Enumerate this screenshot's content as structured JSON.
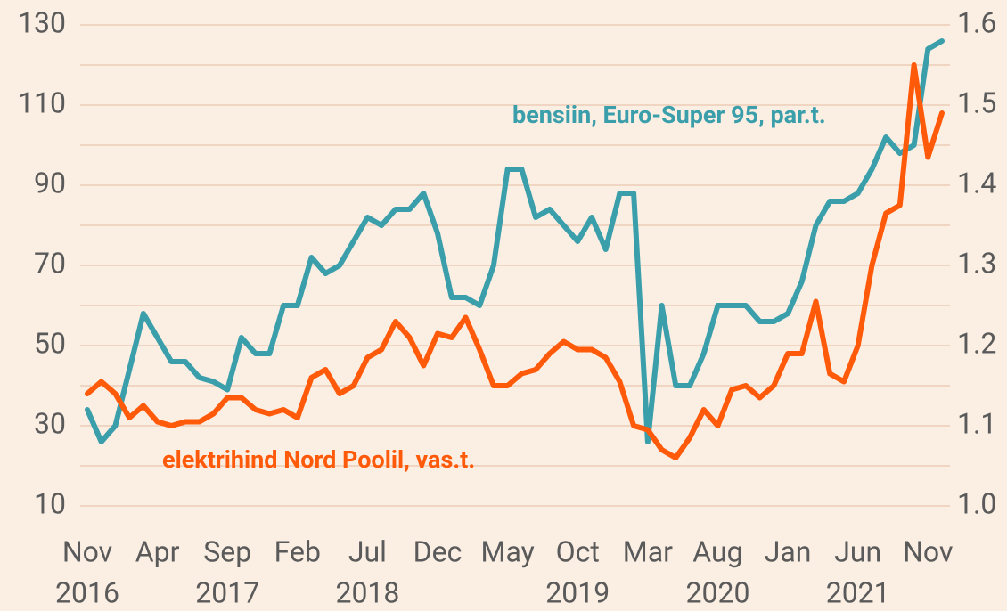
{
  "chart_data": {
    "type": "line",
    "x": [
      "2016-11",
      "2016-12",
      "2017-01",
      "2017-02",
      "2017-03",
      "2017-04",
      "2017-05",
      "2017-06",
      "2017-07",
      "2017-08",
      "2017-09",
      "2017-10",
      "2017-11",
      "2017-12",
      "2018-01",
      "2018-02",
      "2018-03",
      "2018-04",
      "2018-05",
      "2018-06",
      "2018-07",
      "2018-08",
      "2018-09",
      "2018-10",
      "2018-11",
      "2018-12",
      "2019-01",
      "2019-02",
      "2019-03",
      "2019-04",
      "2019-05",
      "2019-06",
      "2019-07",
      "2019-08",
      "2019-09",
      "2019-10",
      "2019-11",
      "2019-12",
      "2020-01",
      "2020-02",
      "2020-03",
      "2020-04",
      "2020-05",
      "2020-06",
      "2020-07",
      "2020-08",
      "2020-09",
      "2020-10",
      "2020-11",
      "2020-12",
      "2021-01",
      "2021-02",
      "2021-03",
      "2021-04",
      "2021-05",
      "2021-06",
      "2021-07",
      "2021-08",
      "2021-09",
      "2021-10",
      "2021-11",
      "2021-12"
    ],
    "series": [
      {
        "name": "elektrihind Nord Poolil, vas.t.",
        "color": "#ff5a0a",
        "axis": "y",
        "values": [
          38,
          41,
          38,
          32,
          35,
          31,
          30,
          31,
          31,
          33,
          37,
          37,
          34,
          33,
          34,
          32,
          42,
          44,
          38,
          40,
          47,
          49,
          56,
          52,
          45,
          53,
          52,
          57,
          49,
          40,
          40,
          43,
          44,
          48,
          51,
          49,
          49,
          47,
          41,
          30,
          29,
          24,
          22,
          27,
          34,
          30,
          39,
          40,
          37,
          40,
          48,
          48,
          61,
          43,
          41,
          50,
          70,
          83,
          85,
          120,
          97,
          108
        ]
      },
      {
        "name": "bensiin, Euro-Super 95, par.t.",
        "color": "#3a9faa",
        "axis": "y2",
        "values": [
          1.12,
          1.08,
          1.1,
          1.17,
          1.24,
          1.21,
          1.18,
          1.18,
          1.16,
          1.155,
          1.145,
          1.21,
          1.19,
          1.19,
          1.25,
          1.25,
          1.31,
          1.29,
          1.3,
          1.33,
          1.36,
          1.35,
          1.37,
          1.37,
          1.39,
          1.34,
          1.26,
          1.26,
          1.25,
          1.3,
          1.42,
          1.42,
          1.36,
          1.37,
          1.35,
          1.33,
          1.36,
          1.32,
          1.39,
          1.39,
          1.08,
          1.25,
          1.15,
          1.15,
          1.19,
          1.25,
          1.25,
          1.25,
          1.23,
          1.23,
          1.24,
          1.28,
          1.35,
          1.38,
          1.38,
          1.39,
          1.42,
          1.46,
          1.44,
          1.45,
          1.57,
          1.58
        ]
      }
    ],
    "xlim": [
      "2016-11",
      "2021-12"
    ],
    "xticks": [
      {
        "value": "2016-11",
        "label": "Nov"
      },
      {
        "value": "2017-04",
        "label": "Apr"
      },
      {
        "value": "2017-09",
        "label": "Sep"
      },
      {
        "value": "2018-02",
        "label": "Feb"
      },
      {
        "value": "2018-07",
        "label": "Jul"
      },
      {
        "value": "2018-12",
        "label": "Dec"
      },
      {
        "value": "2019-05",
        "label": "May"
      },
      {
        "value": "2019-10",
        "label": "Oct"
      },
      {
        "value": "2020-03",
        "label": "Mar"
      },
      {
        "value": "2020-08",
        "label": "Aug"
      },
      {
        "value": "2021-01",
        "label": "Jan"
      },
      {
        "value": "2021-06",
        "label": "Jun"
      },
      {
        "value": "2021-11",
        "label": "Nov"
      }
    ],
    "xtick_years": [
      {
        "value": "2016-11",
        "label": "2016"
      },
      {
        "value": "2017-09",
        "label": "2017"
      },
      {
        "value": "2018-07",
        "label": "2018"
      },
      {
        "value": "2019-10",
        "label": "2019"
      },
      {
        "value": "2020-08",
        "label": "2020"
      },
      {
        "value": "2021-06",
        "label": "2021"
      }
    ],
    "ylim": [
      10,
      130
    ],
    "yticks": [
      10,
      30,
      50,
      70,
      90,
      110,
      130
    ],
    "minor_yticks": [
      20,
      40,
      60,
      80,
      100,
      120
    ],
    "y2lim": [
      1.0,
      1.6
    ],
    "y2ticks": [
      {
        "value": 1.0,
        "label": "1.0"
      },
      1.1,
      1.2,
      1.3,
      1.4,
      1.5,
      {
        "value": 1.6,
        "label": "1.6"
      }
    ],
    "grid": true,
    "grid_color": "#e9c5ad"
  }
}
